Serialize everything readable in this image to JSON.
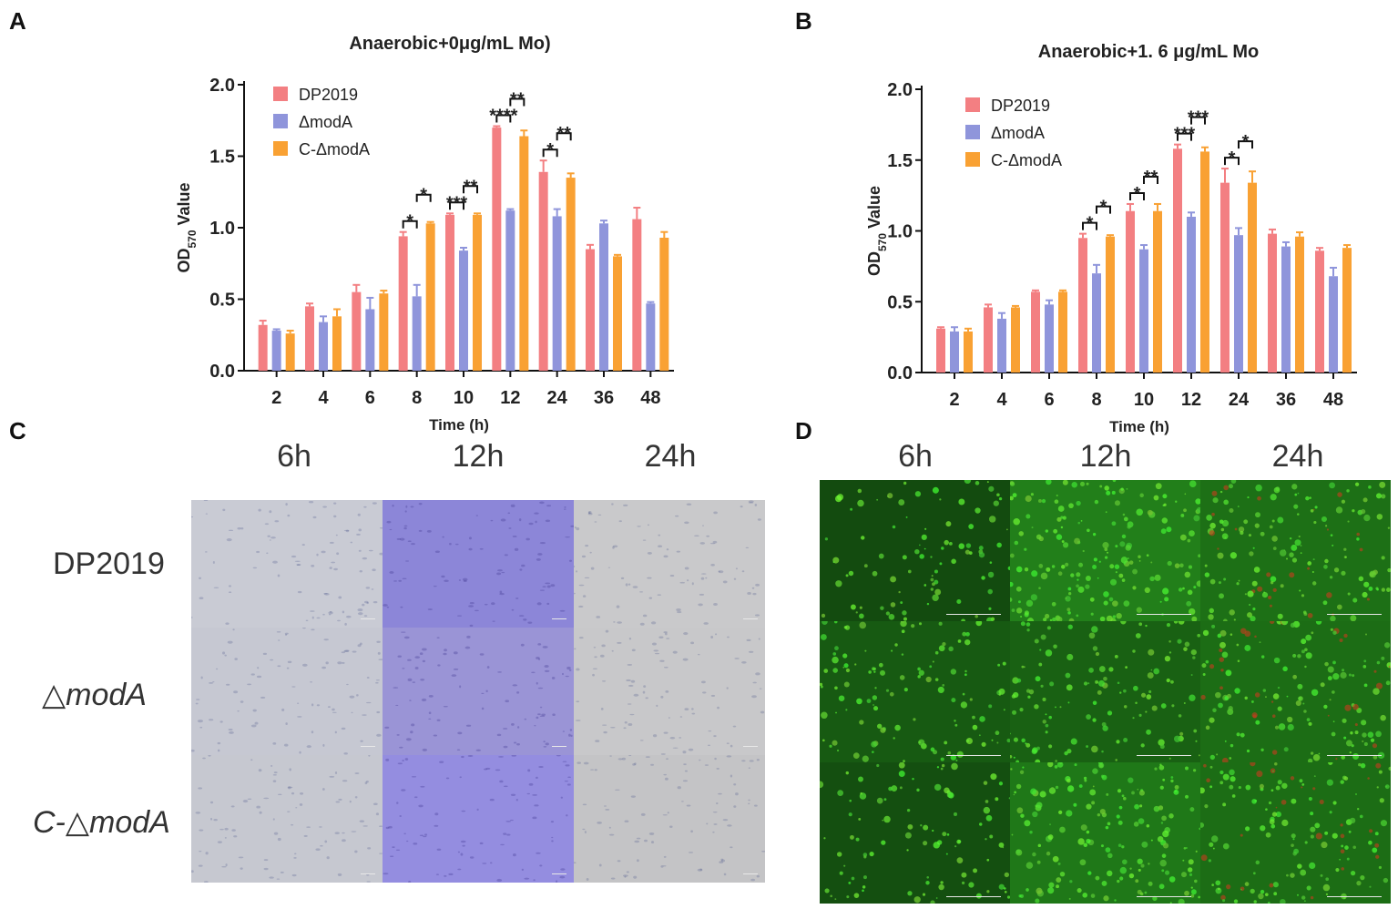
{
  "panels": {
    "A": "A",
    "B": "B",
    "C": "C",
    "D": "D"
  },
  "chart_data": [
    {
      "type": "bar",
      "title": "Anaerobic+0μg/mL Mo)",
      "xlabel": "Time (h)",
      "ylabel_prefix": "OD",
      "ylabel_sub": "570",
      "ylabel_suffix": " Value",
      "ylim": [
        0,
        2.0
      ],
      "yticks": [
        "0.0",
        "0.5",
        "1.0",
        "1.5",
        "2.0"
      ],
      "categories": [
        "2",
        "4",
        "6",
        "8",
        "10",
        "12",
        "24",
        "36",
        "48"
      ],
      "series": [
        {
          "name": "DP2019",
          "color": "#f37f82",
          "values": [
            0.32,
            0.45,
            0.55,
            0.94,
            1.09,
            1.7,
            1.39,
            0.85,
            1.06
          ],
          "errors": [
            0.03,
            0.02,
            0.05,
            0.03,
            0.01,
            0.01,
            0.08,
            0.03,
            0.08
          ]
        },
        {
          "name": "ΔmodA",
          "color": "#8f95db",
          "values": [
            0.28,
            0.34,
            0.43,
            0.52,
            0.84,
            1.12,
            1.08,
            1.03,
            0.47
          ],
          "errors": [
            0.01,
            0.04,
            0.08,
            0.08,
            0.02,
            0.01,
            0.05,
            0.02,
            0.01
          ]
        },
        {
          "name": "C-ΔmodA",
          "color": "#f9a133",
          "values": [
            0.26,
            0.38,
            0.54,
            1.03,
            1.09,
            1.64,
            1.35,
            0.8,
            0.93
          ],
          "errors": [
            0.02,
            0.05,
            0.02,
            0.01,
            0.01,
            0.04,
            0.03,
            0.01,
            0.04
          ]
        }
      ],
      "significance": [
        {
          "category": "8",
          "left": "*",
          "right": "*"
        },
        {
          "category": "10",
          "left": "***",
          "right": "**"
        },
        {
          "category": "12",
          "left": "****",
          "right": "**"
        },
        {
          "category": "24",
          "left": "*",
          "right": "**"
        }
      ]
    },
    {
      "type": "bar",
      "title": "Anaerobic+1. 6 μg/mL Mo",
      "xlabel": "Time (h)",
      "ylabel_prefix": "OD",
      "ylabel_sub": "570",
      "ylabel_suffix": " Value",
      "ylim": [
        0,
        2.0
      ],
      "yticks": [
        "0.0",
        "0.5",
        "1.0",
        "1.5",
        "2.0"
      ],
      "categories": [
        "2",
        "4",
        "6",
        "8",
        "10",
        "12",
        "24",
        "36",
        "48"
      ],
      "series": [
        {
          "name": "DP2019",
          "color": "#f37f82",
          "values": [
            0.31,
            0.46,
            0.57,
            0.95,
            1.14,
            1.58,
            1.34,
            0.98,
            0.86
          ],
          "errors": [
            0.01,
            0.02,
            0.01,
            0.03,
            0.05,
            0.03,
            0.1,
            0.03,
            0.02
          ]
        },
        {
          "name": "ΔmodA",
          "color": "#8f95db",
          "values": [
            0.29,
            0.38,
            0.48,
            0.7,
            0.87,
            1.1,
            0.97,
            0.89,
            0.68
          ],
          "errors": [
            0.03,
            0.04,
            0.03,
            0.06,
            0.03,
            0.03,
            0.05,
            0.03,
            0.06
          ]
        },
        {
          "name": "C-ΔmodA",
          "color": "#f9a133",
          "values": [
            0.29,
            0.46,
            0.57,
            0.96,
            1.14,
            1.56,
            1.34,
            0.96,
            0.88
          ],
          "errors": [
            0.02,
            0.01,
            0.01,
            0.01,
            0.05,
            0.03,
            0.08,
            0.03,
            0.02
          ]
        }
      ],
      "significance": [
        {
          "category": "8",
          "left": "*",
          "right": "*"
        },
        {
          "category": "10",
          "left": "*",
          "right": "**"
        },
        {
          "category": "12",
          "left": "***",
          "right": "***"
        },
        {
          "category": "24",
          "left": "*",
          "right": "*"
        }
      ]
    }
  ],
  "panel_c": {
    "columns": [
      "6h",
      "12h",
      "24h"
    ],
    "rows": [
      "DP2019",
      "△modA",
      "C-△modA"
    ],
    "tile_colors": [
      [
        "#c9cbd4",
        "#8c86d8",
        "#c9c9cb"
      ],
      [
        "#c6c8d2",
        "#9a94d6",
        "#c8c8ca"
      ],
      [
        "#c6c8d0",
        "#948de0",
        "#c4c4c6"
      ]
    ]
  },
  "panel_d": {
    "columns": [
      "6h",
      "12h",
      "24h"
    ],
    "tile_density": [
      [
        0.25,
        0.95,
        0.75
      ],
      [
        0.45,
        0.55,
        0.7
      ],
      [
        0.3,
        0.85,
        0.7
      ]
    ]
  }
}
